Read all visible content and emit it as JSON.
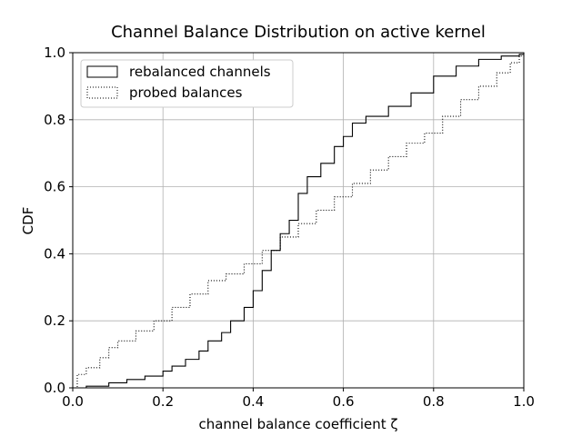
{
  "chart_data": {
    "type": "line",
    "title": "Channel Balance Distribution on active kernel",
    "xlabel": "channel balance coefficient ζ",
    "ylabel": "CDF",
    "xlim": [
      0.0,
      1.0
    ],
    "ylim": [
      0.0,
      1.0
    ],
    "xticks": [
      "0.0",
      "0.2",
      "0.4",
      "0.6",
      "0.8",
      "1.0"
    ],
    "yticks": [
      "0.0",
      "0.2",
      "0.4",
      "0.6",
      "0.8",
      "1.0"
    ],
    "grid": true,
    "legend_position": "top-left",
    "series": [
      {
        "name": "rebalanced channels",
        "style": "solid",
        "color": "#000000",
        "x": [
          0.0,
          0.03,
          0.08,
          0.12,
          0.16,
          0.2,
          0.22,
          0.25,
          0.28,
          0.3,
          0.33,
          0.35,
          0.38,
          0.4,
          0.42,
          0.44,
          0.46,
          0.48,
          0.5,
          0.52,
          0.55,
          0.58,
          0.6,
          0.62,
          0.65,
          0.7,
          0.75,
          0.8,
          0.85,
          0.9,
          0.95,
          0.99,
          1.0
        ],
        "values": [
          0.0,
          0.005,
          0.015,
          0.025,
          0.035,
          0.05,
          0.065,
          0.085,
          0.11,
          0.14,
          0.165,
          0.2,
          0.24,
          0.29,
          0.35,
          0.41,
          0.46,
          0.5,
          0.58,
          0.63,
          0.67,
          0.72,
          0.75,
          0.79,
          0.81,
          0.84,
          0.88,
          0.93,
          0.96,
          0.98,
          0.99,
          0.995,
          1.0
        ]
      },
      {
        "name": "probed balances",
        "style": "dotted",
        "color": "#000000",
        "x": [
          0.0,
          0.01,
          0.03,
          0.06,
          0.08,
          0.1,
          0.14,
          0.18,
          0.22,
          0.26,
          0.3,
          0.34,
          0.38,
          0.42,
          0.46,
          0.5,
          0.54,
          0.58,
          0.62,
          0.66,
          0.7,
          0.74,
          0.78,
          0.82,
          0.86,
          0.9,
          0.94,
          0.97,
          0.99,
          1.0
        ],
        "values": [
          0.0,
          0.04,
          0.06,
          0.09,
          0.12,
          0.14,
          0.17,
          0.2,
          0.24,
          0.28,
          0.32,
          0.34,
          0.37,
          0.41,
          0.45,
          0.49,
          0.53,
          0.57,
          0.61,
          0.65,
          0.69,
          0.73,
          0.76,
          0.81,
          0.86,
          0.9,
          0.94,
          0.97,
          0.99,
          1.0
        ]
      }
    ]
  }
}
